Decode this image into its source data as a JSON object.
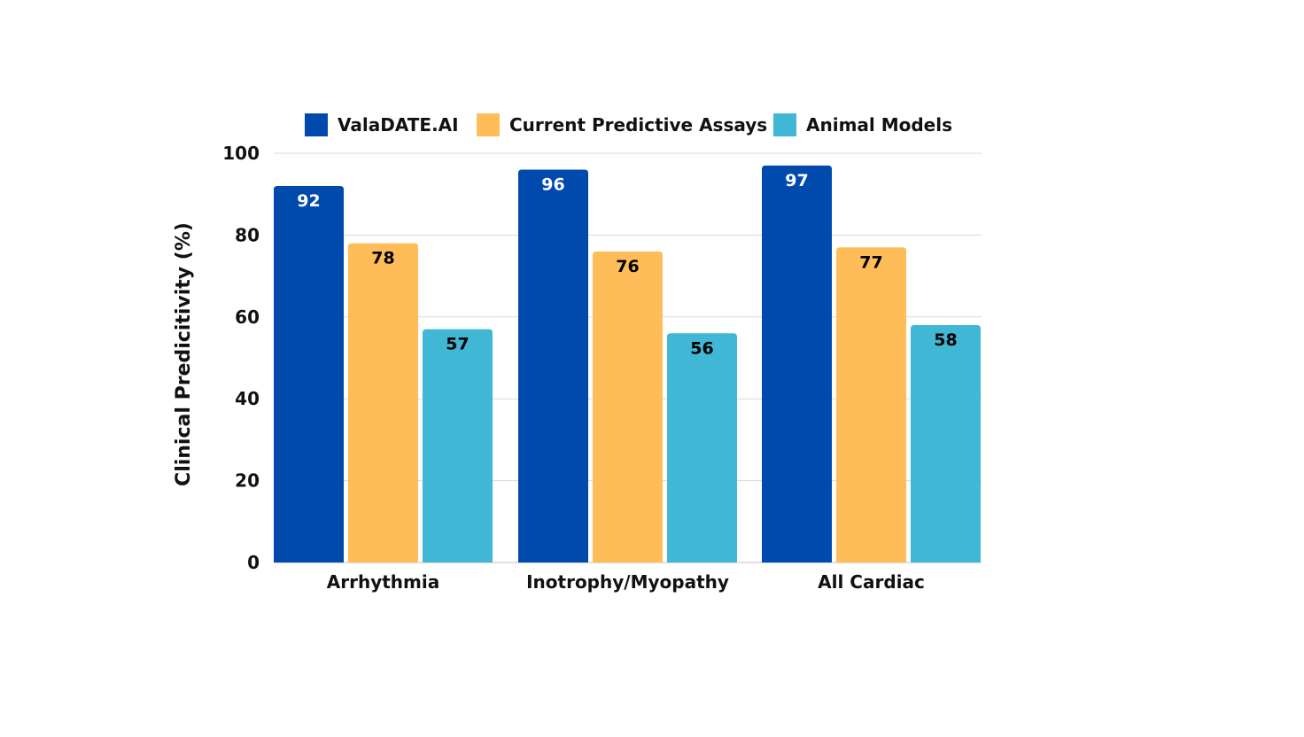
{
  "chart_data": {
    "type": "bar",
    "title": "",
    "xlabel": "",
    "ylabel": "Clinical Predicitivity (%)",
    "ylim": [
      0,
      100
    ],
    "yticks": [
      0,
      20,
      40,
      60,
      80,
      100
    ],
    "grid": true,
    "legend_position": "top",
    "categories": [
      "Arrhythmia",
      "Inotrophy/Myopathy",
      "All Cardiac"
    ],
    "series": [
      {
        "name": "ValaDATE.AI",
        "values": [
          92,
          96,
          97
        ],
        "color": "#004aad",
        "label_color": "#ffffff"
      },
      {
        "name": "Current Predictive Assays",
        "values": [
          78,
          76,
          77
        ],
        "color": "#ffbd59",
        "label_color": "#000000"
      },
      {
        "name": "Animal Models",
        "values": [
          57,
          56,
          58
        ],
        "color": "#41b7d6",
        "label_color": "#000000"
      }
    ],
    "data_labels": true
  }
}
